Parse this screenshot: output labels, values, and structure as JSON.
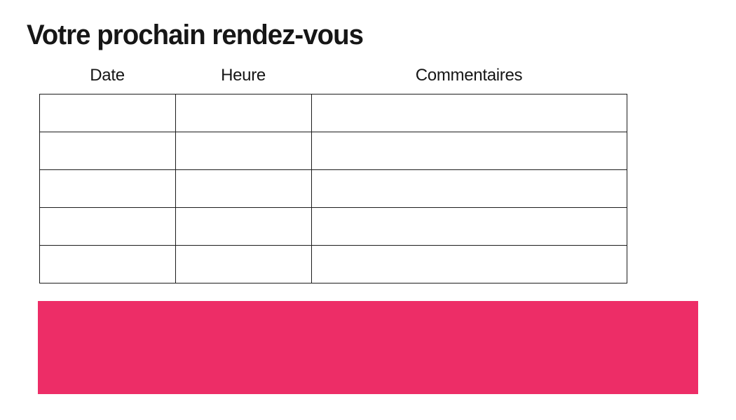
{
  "page": {
    "title": "Votre prochain rendez-vous"
  },
  "table": {
    "headers": [
      "Date",
      "Heure",
      "Commentaires"
    ],
    "rows": [
      [
        "",
        "",
        ""
      ],
      [
        "",
        "",
        ""
      ],
      [
        "",
        "",
        ""
      ],
      [
        "",
        "",
        ""
      ],
      [
        "",
        "",
        ""
      ]
    ]
  },
  "colors": {
    "accent_pink": "#ED2D67",
    "border": "#1c1c1c",
    "text": "#161616",
    "background": "#ffffff"
  }
}
